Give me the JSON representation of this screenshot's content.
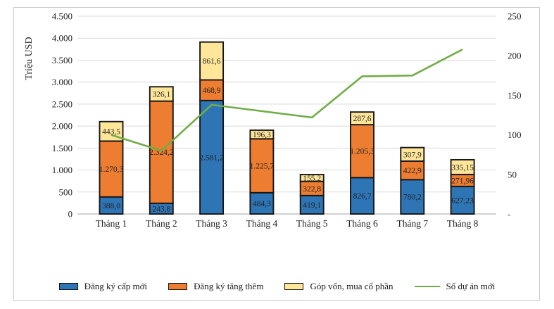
{
  "chart_data": {
    "type": "bar",
    "subtype": "stacked-bars-with-line",
    "title": "",
    "categories": [
      "Tháng 1",
      "Tháng 2",
      "Tháng 3",
      "Tháng 4",
      "Tháng 5",
      "Tháng 6",
      "Tháng 7",
      "Tháng 8"
    ],
    "series": [
      {
        "name": "Đăng ký cấp mới",
        "type": "bar",
        "color": "#2E75B6",
        "values": [
          388.0,
          243.8,
          2581.2,
          484.3,
          419.1,
          826.7,
          780.2,
          627.23
        ],
        "labels": [
          "388,0",
          "243,8",
          "2.581,2",
          "484,3",
          "419,1",
          "826,7",
          "780,2",
          "627,23"
        ]
      },
      {
        "name": "Đăng ký tăng thêm",
        "type": "bar",
        "color": "#ED7D31",
        "values": [
          1270.3,
          2324.2,
          468.9,
          1225.7,
          322.8,
          1205.3,
          422.9,
          271.96
        ],
        "labels": [
          "1.270,3",
          "2.324,2",
          "468,9",
          "1.225,7",
          "322,8",
          "1.205,3",
          "422,9",
          "271,96"
        ]
      },
      {
        "name": "Góp vốn, mua cổ phần",
        "type": "bar",
        "color": "#FFE699",
        "values": [
          443.5,
          326.1,
          861.6,
          196.3,
          155.2,
          287.6,
          307.9,
          335.15
        ],
        "labels": [
          "443,5",
          "326,1",
          "861,6",
          "196,3",
          "155,2",
          "287,6",
          "307,9",
          "335,15"
        ]
      },
      {
        "name": "Số dự án mới",
        "type": "line",
        "axis": "right",
        "color": "#70AD47",
        "values": [
          100,
          80,
          138,
          130,
          122,
          174,
          175,
          208
        ]
      }
    ],
    "left_axis": {
      "title": "Triệu USD",
      "min": 0,
      "max": 4500,
      "tick_values": [
        4500,
        4000,
        3500,
        3000,
        2500,
        2000,
        1500,
        1000,
        500,
        0
      ],
      "tick_labels": [
        "4.500",
        "4.000",
        "3.500",
        "3.000",
        "2.500",
        "2.000",
        "1.500",
        "1.000",
        "500",
        "0"
      ]
    },
    "right_axis": {
      "min": 0,
      "max": 250,
      "tick_values": [
        250,
        200,
        150,
        100,
        50,
        0
      ],
      "tick_labels": [
        "250",
        "200",
        "150",
        "100",
        "50",
        "-"
      ]
    },
    "grid": true,
    "legend_position": "bottom"
  },
  "colors": {
    "bar_border": "#161616",
    "gridline": "#D9D9D9",
    "zero_line": "#A6A6A6",
    "text": "#242424",
    "frame_border": "#C9C9C9"
  }
}
